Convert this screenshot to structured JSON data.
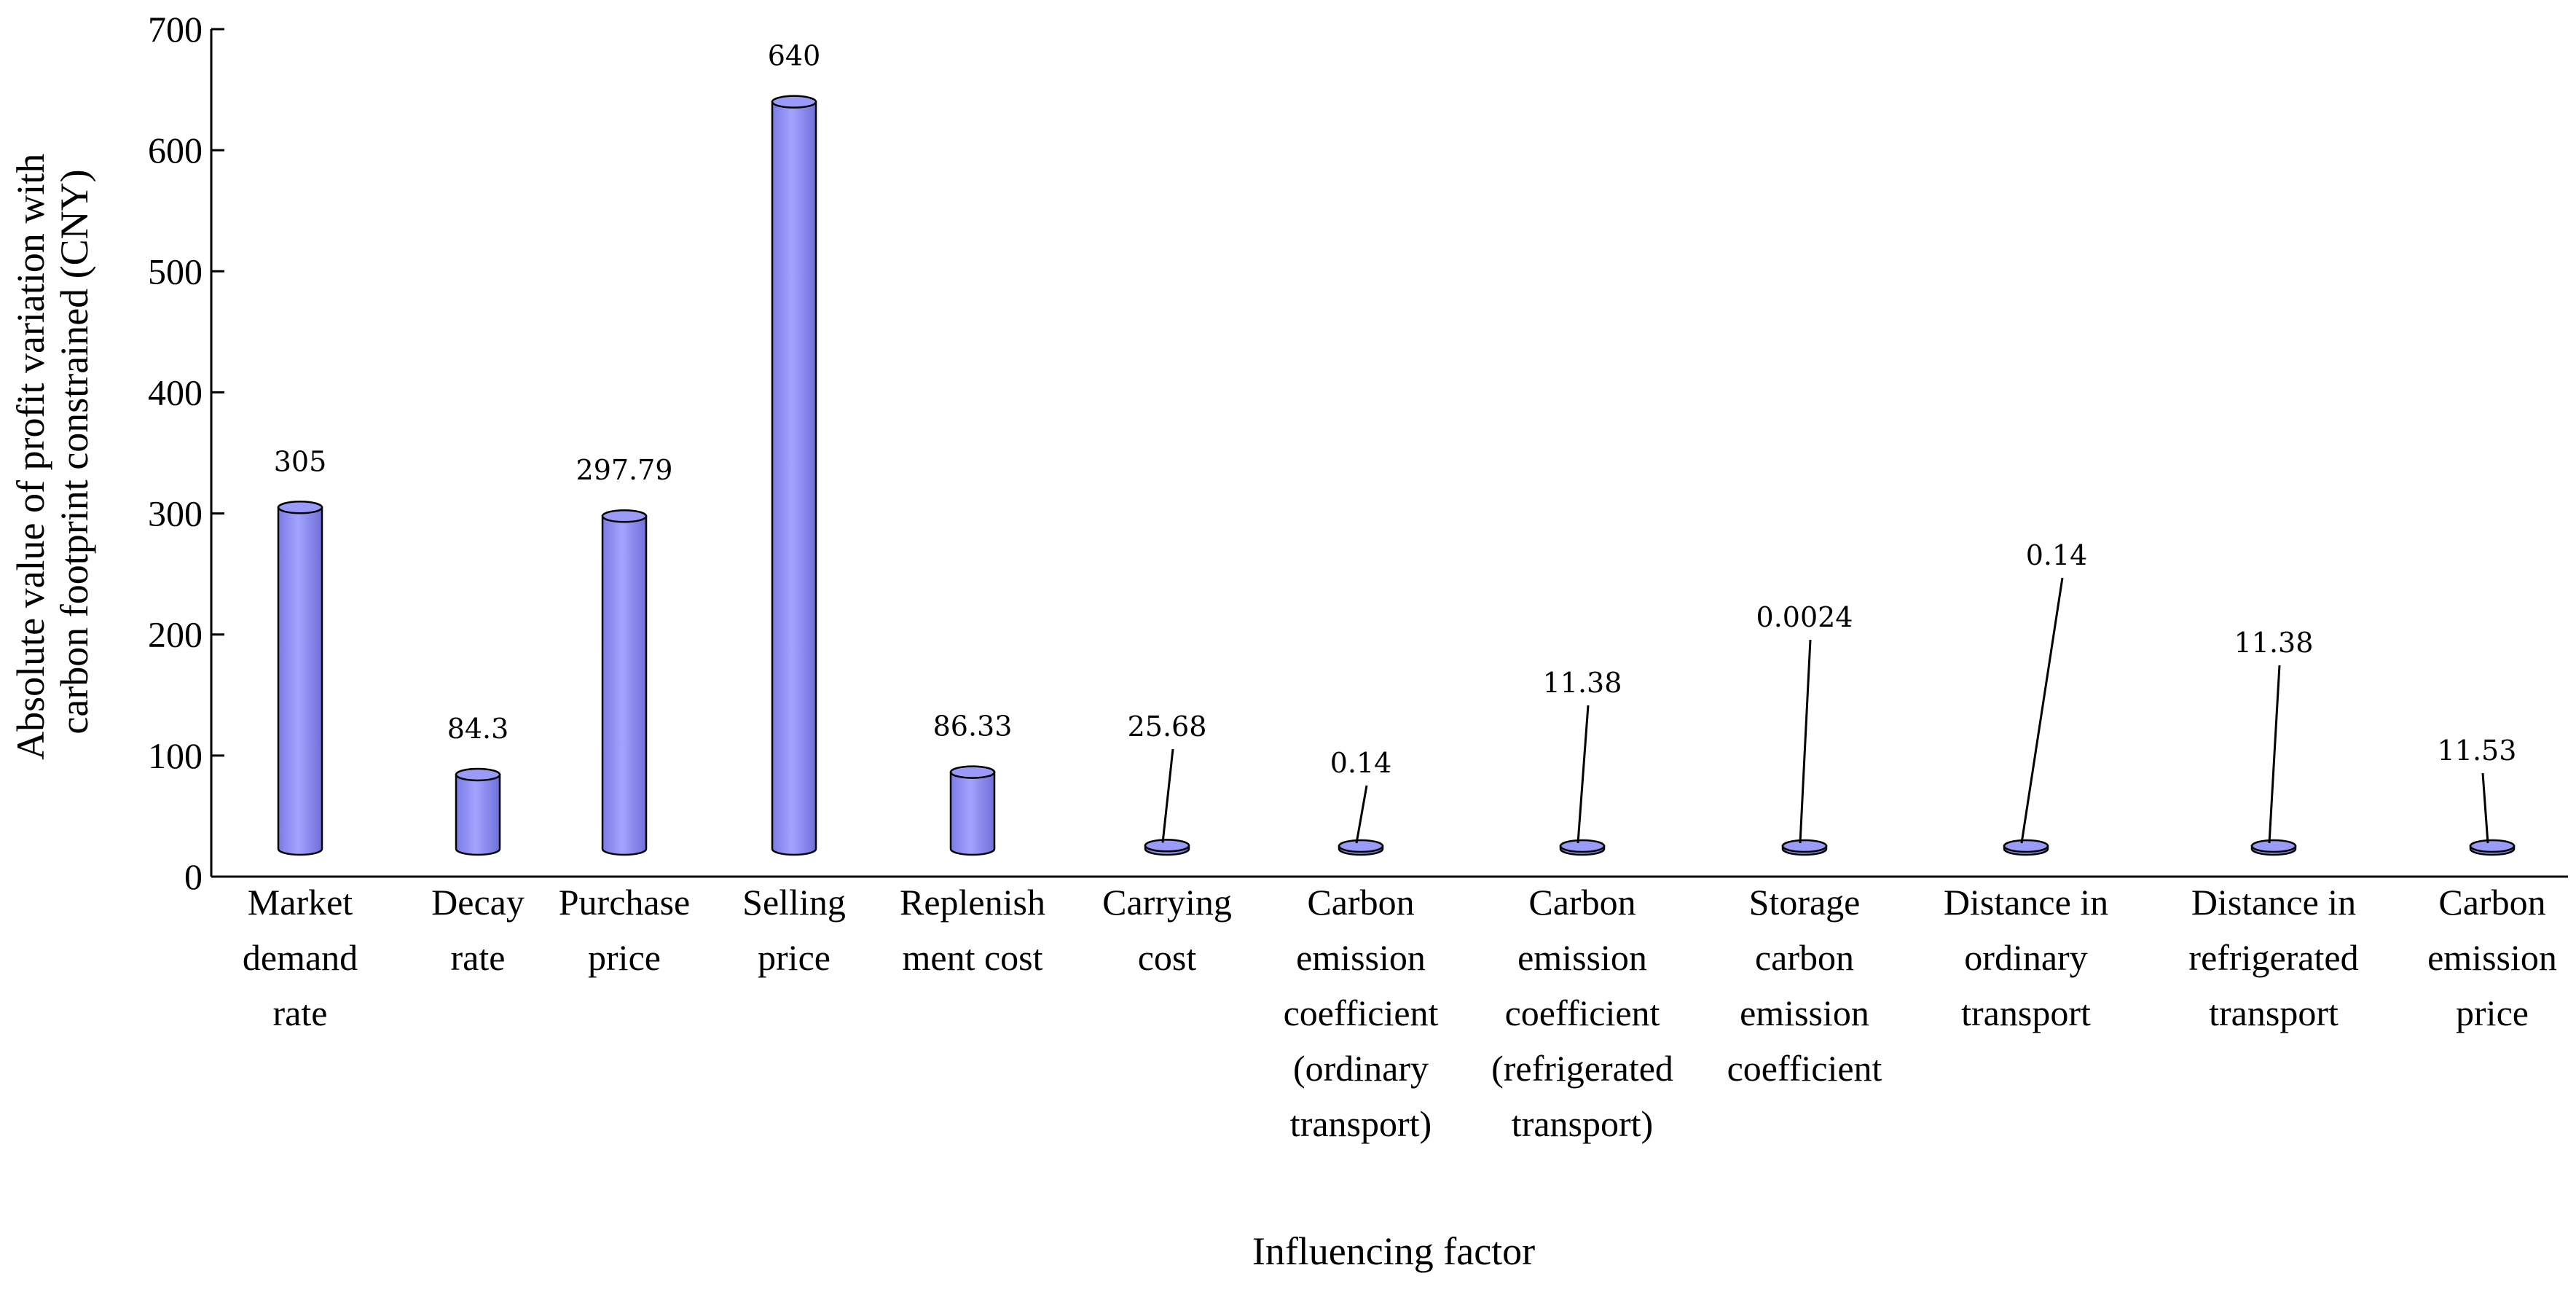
{
  "chart_data": {
    "type": "bar",
    "xlabel": "Influencing factor",
    "ylabel": [
      "Absolute value of profit variation with",
      "carbon footprint constrained (CNY)"
    ],
    "ylim": [
      0,
      700
    ],
    "yticks": [
      0,
      100,
      200,
      300,
      400,
      500,
      600,
      700
    ],
    "grid": false,
    "categories": [
      [
        "Market",
        "demand",
        "rate"
      ],
      [
        "Decay",
        "rate"
      ],
      [
        "Purchase",
        "price"
      ],
      [
        "Selling",
        "price"
      ],
      [
        "Replenish",
        "ment cost"
      ],
      [
        "Carrying",
        "cost"
      ],
      [
        "Carbon",
        "emission",
        "coefficient",
        "(ordinary",
        "transport)"
      ],
      [
        "Carbon",
        "emission",
        "coefficient",
        "(refrigerated",
        "transport)"
      ],
      [
        "Storage",
        "carbon",
        "emission",
        "coefficient"
      ],
      [
        "Distance in",
        "ordinary",
        "transport"
      ],
      [
        "Distance in",
        "refrigerated",
        "transport"
      ],
      [
        "Carbon",
        "emission",
        "price"
      ]
    ],
    "values": [
      305,
      84.3,
      297.79,
      640,
      86.33,
      25.68,
      0.14,
      11.38,
      0.0024,
      0.14,
      11.38,
      11.53
    ],
    "data_labels": [
      "305",
      "84.3",
      "297.79",
      "640",
      "86.33",
      "25.68",
      "0.14",
      "11.38",
      "0.0024",
      "0.14",
      "11.38",
      "11.53"
    ],
    "bar_color": "#8c8cf0"
  }
}
